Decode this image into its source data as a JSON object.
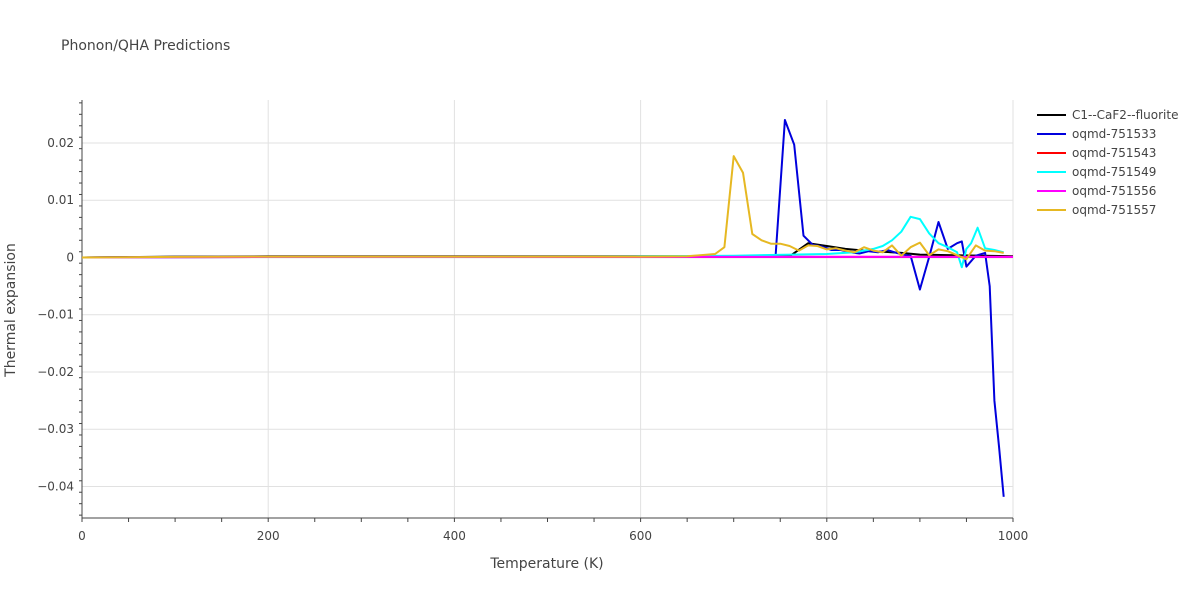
{
  "chart_data": {
    "type": "line",
    "title": "Phonon/QHA Predictions",
    "xlabel": "Temperature (K)",
    "ylabel": "Thermal expansion",
    "xlim": [
      0,
      1000
    ],
    "ylim": [
      -0.0455,
      0.0275
    ],
    "x_ticks": [
      0,
      200,
      400,
      600,
      800,
      1000
    ],
    "x_tick_labels": [
      "0",
      "200",
      "400",
      "600",
      "800",
      "1000"
    ],
    "y_ticks": [
      -0.04,
      -0.03,
      -0.02,
      -0.01,
      0,
      0.01,
      0.02
    ],
    "y_tick_labels": [
      "−0.04",
      "−0.03",
      "−0.02",
      "−0.01",
      "0",
      "0.01",
      "0.02"
    ],
    "grid": true,
    "legend_position": "top-right",
    "series": [
      {
        "name": "C1--CaF2--fluorite",
        "color": "#000000",
        "x": [
          0,
          100,
          200,
          300,
          400,
          500,
          600,
          700,
          760,
          780,
          800,
          820,
          840,
          860,
          880,
          900,
          1000
        ],
        "y": [
          0,
          0.00015,
          0.0002,
          0.0002,
          0.0002,
          0.0002,
          0.0002,
          0.0002,
          0.0002,
          0.0025,
          0.002,
          0.0015,
          0.0012,
          0.001,
          0.0008,
          0.0005,
          0.0002
        ]
      },
      {
        "name": "oqmd-751533",
        "color": "#0000dd",
        "x": [
          0,
          100,
          200,
          300,
          400,
          500,
          600,
          700,
          745,
          755,
          765,
          775,
          785,
          795,
          805,
          815,
          825,
          835,
          845,
          855,
          865,
          875,
          885,
          890,
          900,
          910,
          920,
          930,
          940,
          945,
          950,
          960,
          970,
          975,
          980,
          985,
          990
        ],
        "y": [
          0,
          0.0001,
          0.00015,
          0.00015,
          0.00015,
          0.00015,
          0.00015,
          0.0002,
          0.0003,
          0.024,
          0.0197,
          0.0038,
          0.0022,
          0.0019,
          0.0013,
          0.0013,
          0.0009,
          0.0007,
          0.0011,
          0.0009,
          0.0013,
          0.0008,
          0.0004,
          0.0003,
          -0.0056,
          0.0001,
          0.0062,
          0.0015,
          0.0025,
          0.0028,
          -0.0016,
          0.0003,
          0.0008,
          -0.005,
          -0.025,
          -0.033,
          -0.0418
        ]
      },
      {
        "name": "oqmd-751543",
        "color": "#ff0000",
        "x": [
          0,
          200,
          400,
          600,
          800,
          1000
        ],
        "y": [
          0,
          0.0001,
          0.0001,
          0.0001,
          0.0001,
          0.0001
        ]
      },
      {
        "name": "oqmd-751549",
        "color": "#00ffff",
        "x": [
          0,
          200,
          400,
          600,
          700,
          800,
          830,
          850,
          860,
          870,
          880,
          890,
          900,
          910,
          920,
          930,
          940,
          945,
          950,
          955,
          962,
          970,
          980,
          990
        ],
        "y": [
          0,
          0.0001,
          0.0001,
          0.0002,
          0.0003,
          0.0006,
          0.0009,
          0.0015,
          0.002,
          0.003,
          0.0045,
          0.0071,
          0.0067,
          0.0042,
          0.0025,
          0.0018,
          0.0009,
          -0.0017,
          0.0015,
          0.0025,
          0.0052,
          0.0016,
          0.0013,
          0.0009
        ]
      },
      {
        "name": "oqmd-751556",
        "color": "#ff00ff",
        "x": [
          0,
          200,
          400,
          600,
          800,
          900,
          1000
        ],
        "y": [
          0,
          0.0001,
          0.0001,
          0.0001,
          0.0001,
          0.0001,
          0.0001
        ]
      },
      {
        "name": "oqmd-751557",
        "color": "#e6b822",
        "x": [
          0,
          100,
          200,
          300,
          400,
          500,
          600,
          650,
          680,
          690,
          700,
          710,
          720,
          730,
          740,
          750,
          760,
          770,
          780,
          790,
          800,
          810,
          820,
          830,
          840,
          850,
          860,
          870,
          880,
          890,
          900,
          910,
          920,
          930,
          940,
          950,
          960,
          970,
          980,
          990
        ],
        "y": [
          0,
          0.0001,
          0.00015,
          0.00015,
          0.00015,
          0.00015,
          0.00015,
          0.0002,
          0.0006,
          0.0018,
          0.0177,
          0.0148,
          0.0041,
          0.003,
          0.0024,
          0.0024,
          0.002,
          0.0012,
          0.0021,
          0.002,
          0.0014,
          0.0016,
          0.0012,
          0.0009,
          0.0018,
          0.0012,
          0.0009,
          0.0021,
          0.0003,
          0.0018,
          0.0026,
          0.0004,
          0.0014,
          0.0011,
          0.0004,
          -0.0003,
          0.0021,
          0.0012,
          0.0011,
          0.0008
        ]
      }
    ]
  }
}
